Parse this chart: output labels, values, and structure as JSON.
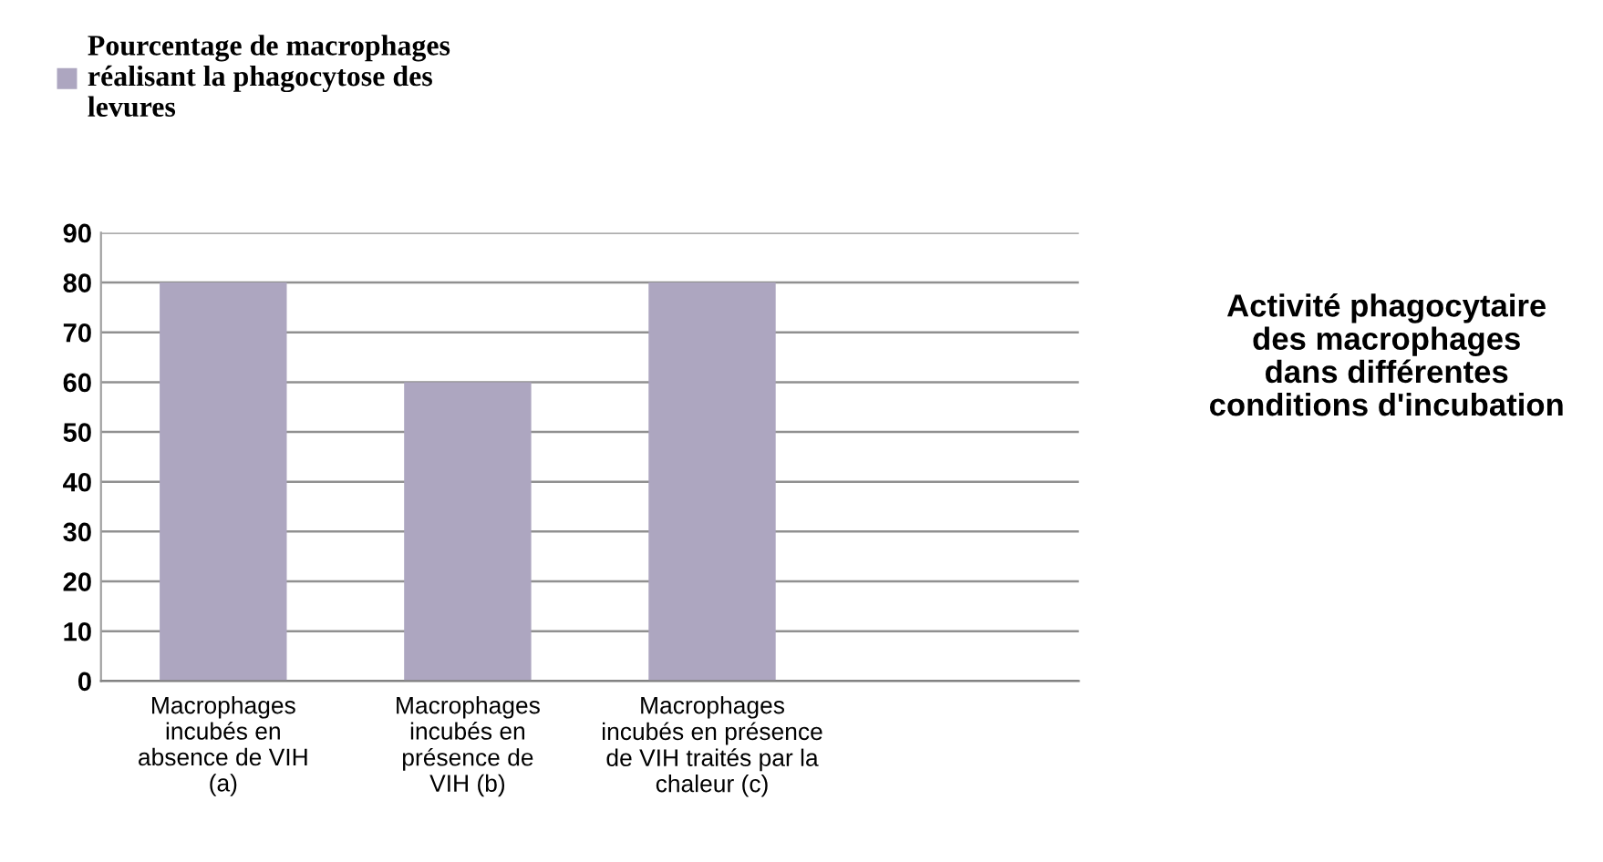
{
  "chart_data": {
    "type": "bar",
    "title": "Activité phagocytaire\ndes macrophages\ndans différentes\nconditions d'incubation",
    "categories": [
      "Macrophages\nincubés en\nabsence de VIH\n(a)",
      "Macrophages\nincubés en\nprésence de\nVIH (b)",
      "Macrophages\nincubés en présence\nde VIH traités par la\nchaleur (c)",
      null
    ],
    "series": [
      {
        "name": "Pourcentage de macrophages\nréalisant la phagocytose des\nlevures",
        "color": "#ada6c0",
        "values": [
          80,
          60,
          80,
          null
        ]
      }
    ],
    "ylim": [
      0,
      90
    ],
    "yticks": [
      0,
      10,
      20,
      30,
      40,
      50,
      60,
      70,
      80,
      90
    ],
    "grid": "y",
    "legend": "top left"
  }
}
